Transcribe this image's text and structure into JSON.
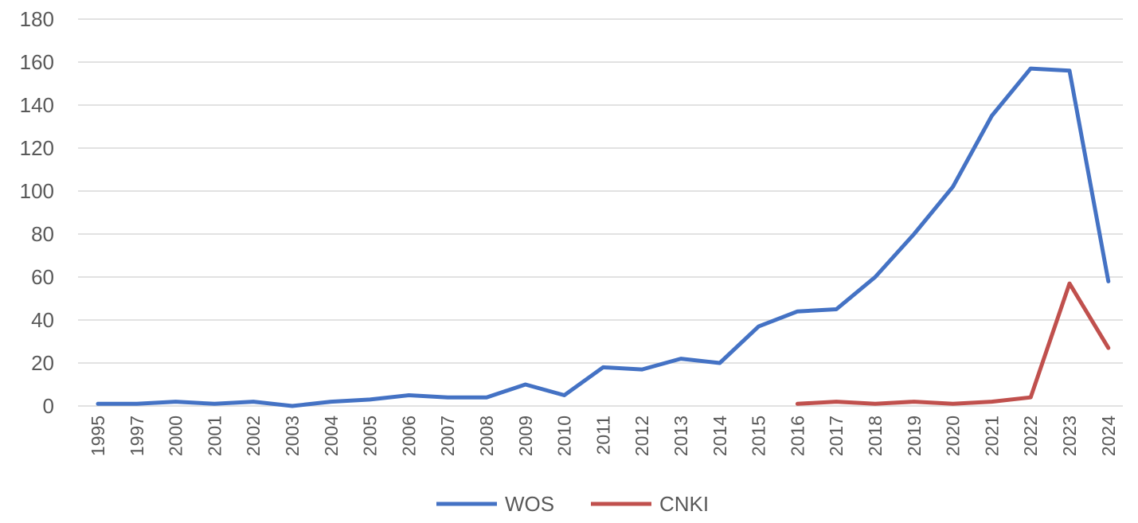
{
  "chart_data": {
    "type": "line",
    "title": "",
    "xlabel": "",
    "ylabel": "",
    "categories": [
      "1995",
      "1997",
      "2000",
      "2001",
      "2002",
      "2003",
      "2004",
      "2005",
      "2006",
      "2007",
      "2008",
      "2009",
      "2010",
      "2011",
      "2012",
      "2013",
      "2014",
      "2015",
      "2016",
      "2017",
      "2018",
      "2019",
      "2020",
      "2021",
      "2022",
      "2023",
      "2024"
    ],
    "ylim": [
      0,
      180
    ],
    "yticks": [
      "0",
      "20",
      "40",
      "60",
      "80",
      "100",
      "120",
      "140",
      "160",
      "180"
    ],
    "grid": true,
    "legend_position": "bottom",
    "series": [
      {
        "name": "WOS",
        "color": "#4472c4",
        "values": [
          1,
          1,
          2,
          1,
          2,
          0,
          2,
          3,
          5,
          4,
          4,
          10,
          5,
          18,
          17,
          22,
          20,
          37,
          44,
          45,
          60,
          80,
          102,
          135,
          157,
          156,
          58
        ]
      },
      {
        "name": "CNKI",
        "color": "#c0504d",
        "values": [
          null,
          null,
          null,
          null,
          null,
          null,
          null,
          null,
          null,
          null,
          null,
          null,
          null,
          null,
          null,
          null,
          null,
          null,
          1,
          2,
          1,
          2,
          1,
          2,
          4,
          57,
          27
        ]
      }
    ]
  }
}
